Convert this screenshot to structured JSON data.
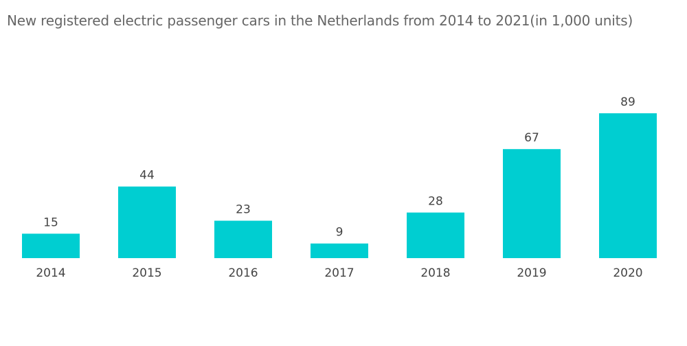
{
  "chart_data": {
    "type": "bar",
    "title": "New registered electric passenger cars in the Netherlands from 2014 to 2021(in 1,000 units)",
    "categories": [
      "2014",
      "2015",
      "2016",
      "2017",
      "2018",
      "2019",
      "2020"
    ],
    "values": [
      15,
      44,
      23,
      9,
      28,
      67,
      89
    ],
    "xlabel": "",
    "ylabel": "",
    "ylim": [
      0,
      89
    ],
    "grid": false,
    "legend": "none",
    "colors": {
      "bar": "#00CED1",
      "label": "#444444",
      "title": "#666666"
    }
  }
}
